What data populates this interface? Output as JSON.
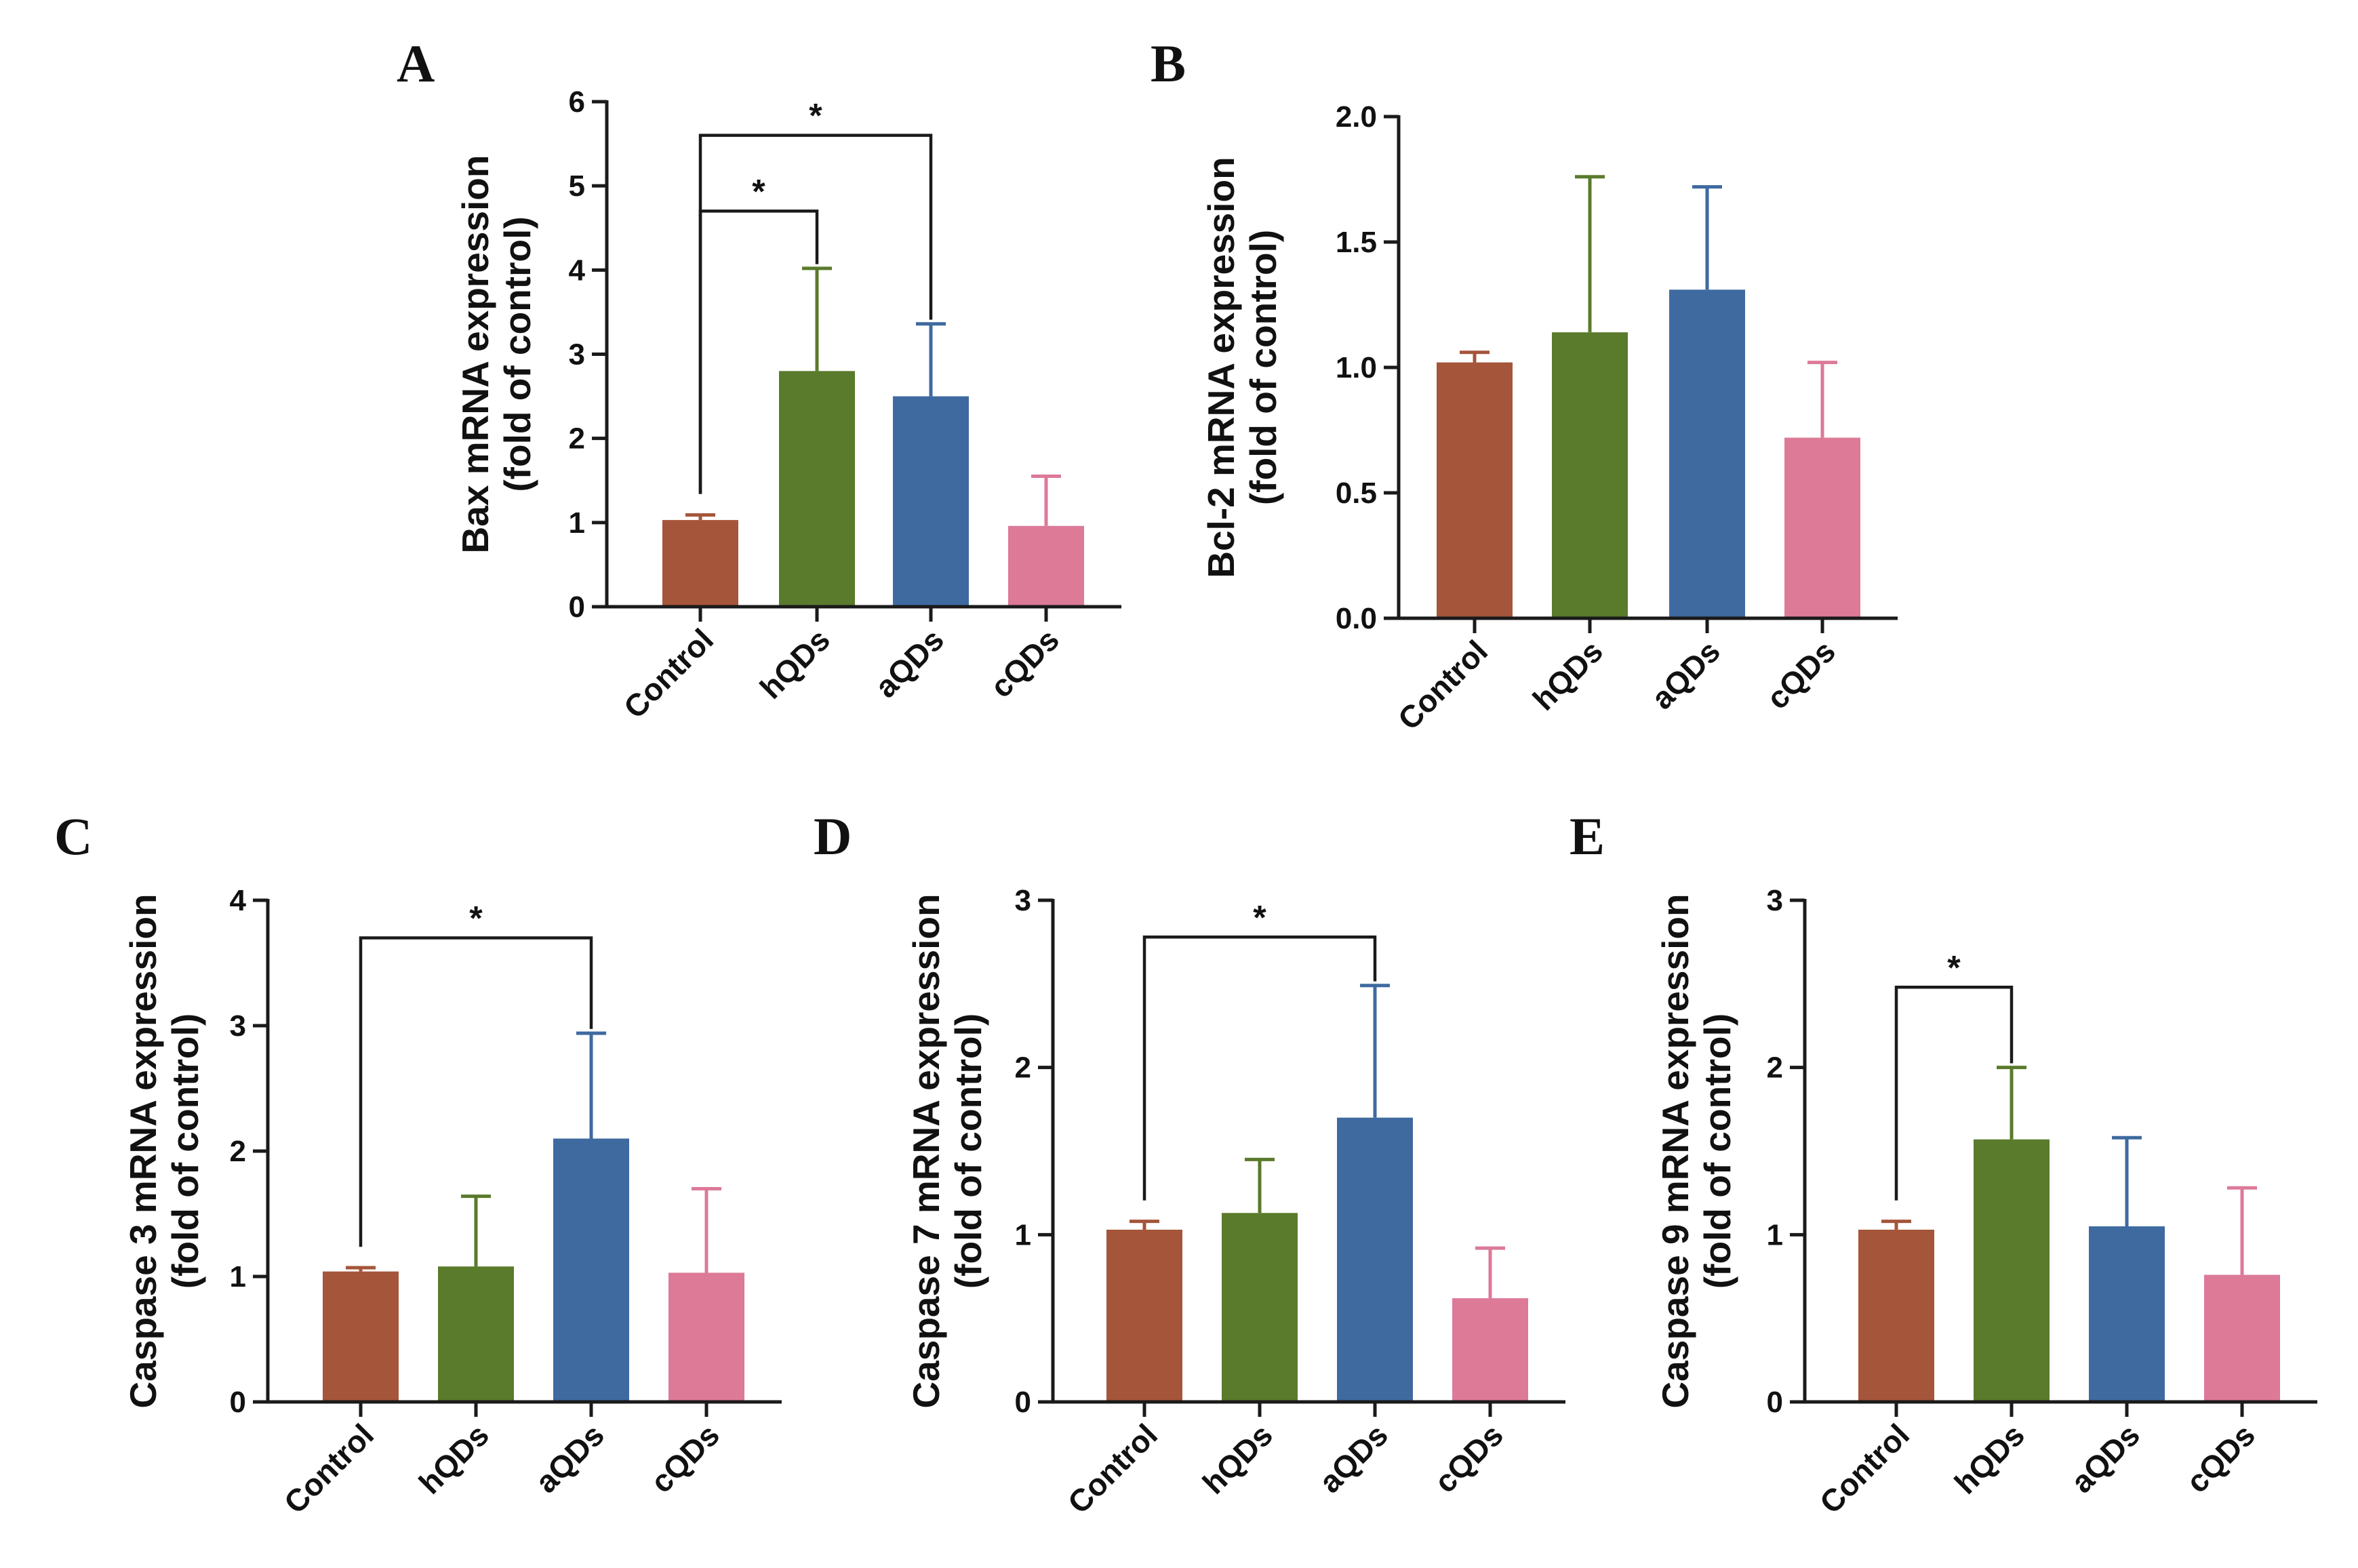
{
  "colors": {
    "Control": "#a5553a",
    "hQDs": "#5a7a2c",
    "aQDs": "#3e6aa0",
    "cQDs": "#dc7a98",
    "axis": "#1a1a1a"
  },
  "chart_data": [
    {
      "panel": "A",
      "type": "bar",
      "ylabel_lines": [
        "Bax mRNA expression",
        "(fold of control)"
      ],
      "categories": [
        "Control",
        "hQDs",
        "aQDs",
        "cQDs"
      ],
      "values": [
        1.03,
        2.8,
        2.5,
        0.96
      ],
      "errors": [
        0.06,
        1.22,
        0.86,
        0.59
      ],
      "ylim": [
        0,
        6
      ],
      "yticks": [
        0,
        1,
        2,
        3,
        4,
        5,
        6
      ],
      "ytick_labels": [
        "0",
        "1",
        "2",
        "3",
        "4",
        "5",
        "6"
      ],
      "significance": [
        {
          "from": 0,
          "to": 2,
          "label": "*",
          "y": 5.6
        },
        {
          "from": 0,
          "to": 1,
          "label": "*",
          "y": 4.7
        }
      ]
    },
    {
      "panel": "B",
      "type": "bar",
      "ylabel_lines": [
        "Bcl-2 mRNA expression",
        "(fold of control)"
      ],
      "categories": [
        "Control",
        "hQDs",
        "aQDs",
        "cQDs"
      ],
      "values": [
        1.02,
        1.14,
        1.31,
        0.72
      ],
      "errors": [
        0.04,
        0.62,
        0.41,
        0.3
      ],
      "ylim": [
        0,
        2
      ],
      "yticks": [
        0,
        0.5,
        1,
        1.5,
        2
      ],
      "ytick_labels": [
        "0.0",
        "0.5",
        "1.0",
        "1.5",
        "2.0"
      ],
      "significance": []
    },
    {
      "panel": "C",
      "type": "bar",
      "ylabel_lines": [
        "Caspase 3 mRNA expression",
        "(fold of control)"
      ],
      "categories": [
        "Control",
        "hQDs",
        "aQDs",
        "cQDs"
      ],
      "values": [
        1.04,
        1.08,
        2.1,
        1.03
      ],
      "errors": [
        0.03,
        0.56,
        0.84,
        0.67
      ],
      "ylim": [
        0,
        4
      ],
      "yticks": [
        0,
        1,
        2,
        3,
        4
      ],
      "ytick_labels": [
        "0",
        "1",
        "2",
        "3",
        "4"
      ],
      "significance": [
        {
          "from": 0,
          "to": 2,
          "label": "*",
          "y": 3.7
        }
      ]
    },
    {
      "panel": "D",
      "type": "bar",
      "ylabel_lines": [
        "Caspase 7 mRNA expression",
        "(fold of control)"
      ],
      "categories": [
        "Control",
        "hQDs",
        "aQDs",
        "cQDs"
      ],
      "values": [
        1.03,
        1.13,
        1.7,
        0.62
      ],
      "errors": [
        0.05,
        0.32,
        0.79,
        0.3
      ],
      "ylim": [
        0,
        3
      ],
      "yticks": [
        0,
        1,
        2,
        3
      ],
      "ytick_labels": [
        "0",
        "1",
        "2",
        "3"
      ],
      "significance": [
        {
          "from": 0,
          "to": 2,
          "label": "*",
          "y": 2.78
        }
      ]
    },
    {
      "panel": "E",
      "type": "bar",
      "ylabel_lines": [
        "Caspase 9 mRNA expression",
        "(fold of control)"
      ],
      "categories": [
        "Control",
        "hQDs",
        "aQDs",
        "cQDs"
      ],
      "values": [
        1.03,
        1.57,
        1.05,
        0.76
      ],
      "errors": [
        0.05,
        0.43,
        0.53,
        0.52
      ],
      "ylim": [
        0,
        3
      ],
      "yticks": [
        0,
        1,
        2,
        3
      ],
      "ytick_labels": [
        "0",
        "1",
        "2",
        "3"
      ],
      "significance": [
        {
          "from": 0,
          "to": 1,
          "label": "*",
          "y": 2.48
        }
      ]
    }
  ]
}
